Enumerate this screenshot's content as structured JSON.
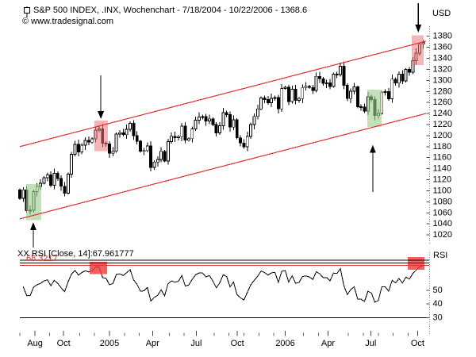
{
  "window": {
    "title": "S&P 500 INDEX, .INX, Wochenchart - 7/18/2004 - 10/22/2006 - 1368.6",
    "copyright": "© www.tradesignal.com"
  },
  "axes": {
    "price_unit": "USD",
    "rsi_label": "RSI",
    "price_ticks": [
      1380,
      1360,
      1340,
      1320,
      1300,
      1280,
      1260,
      1240,
      1220,
      1200,
      1180,
      1160,
      1140,
      1120,
      1100,
      1080,
      1060,
      1040,
      1020
    ],
    "rsi_ticks": [
      50,
      40,
      30
    ],
    "x_labels": [
      {
        "text": "Aug",
        "week": 4.4
      },
      {
        "text": "Oct",
        "week": 12.7
      },
      {
        "text": "2005",
        "week": 26
      },
      {
        "text": "Apr",
        "week": 38.5
      },
      {
        "text": "Jul",
        "week": 51.2
      },
      {
        "text": "Oct",
        "week": 63.1
      },
      {
        "text": "2006",
        "week": 77
      },
      {
        "text": "Apr",
        "week": 89.4
      },
      {
        "text": "Jul",
        "week": 101.8
      },
      {
        "text": "Oct",
        "week": 115.4
      }
    ]
  },
  "indicator": {
    "label": "XX RSI [Close, 14]:67.961777",
    "hidden_red_label": "68.3217"
  },
  "chart_data": {
    "type": "candlestick",
    "title": "S&P 500 INDEX, .INX, Wochenchart - 7/18/2004 - 10/22/2006 - 1368.6",
    "symbol": ".INX",
    "timeframe": "weekly (Wochenchart)",
    "date_range": "7/18/2004 - 10/22/2006",
    "last_price": 1368.6,
    "price_axis": {
      "min": 1013,
      "max": 1392,
      "tick_step": 20
    },
    "weeks": 118,
    "open_first": 1101.4,
    "closes": [
      1086.2,
      1101.7,
      1064.0,
      1064.8,
      1098.3,
      1107.8,
      1113.6,
      1123.9,
      1128.6,
      1110.1,
      1131.5,
      1122.1,
      1108.2,
      1095.7,
      1130.2,
      1166.2,
      1184.2,
      1170.3,
      1182.7,
      1191.2,
      1188.0,
      1194.2,
      1210.1,
      1211.9,
      1186.2,
      1184.5,
      1167.9,
      1171.4,
      1203.0,
      1205.3,
      1201.6,
      1211.4,
      1222.1,
      1200.1,
      1189.7,
      1171.4,
      1172.9,
      1181.2,
      1142.6,
      1152.1,
      1156.9,
      1171.4,
      1154.1,
      1189.3,
      1198.8,
      1196.0,
      1198.1,
      1217.0,
      1191.6,
      1194.4,
      1211.9,
      1227.9,
      1233.7,
      1234.2,
      1226.4,
      1230.4,
      1219.7,
      1205.1,
      1218.0,
      1241.5,
      1237.9,
      1215.3,
      1228.8,
      1195.9,
      1186.6,
      1179.6,
      1198.4,
      1220.1,
      1234.7,
      1248.3,
      1268.3,
      1265.1,
      1259.4,
      1267.3,
      1268.7,
      1248.3,
      1285.5,
      1287.6,
      1261.5,
      1283.7,
      1264.0,
      1267.0,
      1287.2,
      1289.4,
      1287.2,
      1281.6,
      1307.3,
      1303.0,
      1294.9,
      1295.5,
      1289.1,
      1311.3,
      1310.6,
      1325.8,
      1291.2,
      1267.0,
      1280.2,
      1288.2,
      1252.3,
      1251.5,
      1244.5,
      1270.2,
      1265.5,
      1236.2,
      1240.3,
      1278.6,
      1279.4,
      1266.7,
      1302.3,
      1295.1,
      1311.0,
      1298.9,
      1319.7,
      1314.8,
      1335.9,
      1349.6,
      1365.6,
      1368.6
    ],
    "trend_channel": {
      "upper": {
        "week1": 0,
        "price1": 1180,
        "week2": 117.8,
        "price2": 1371
      },
      "lower": {
        "week1": 0,
        "price1": 1049,
        "week2": 117.8,
        "price2": 1240
      }
    },
    "highlights": [
      {
        "pane": "price",
        "color": "green",
        "week_from": 1.8,
        "week_to": 6.2,
        "price_from": 1047,
        "price_to": 1112
      },
      {
        "pane": "price",
        "color": "red",
        "week_from": 21.6,
        "week_to": 25.6,
        "price_from": 1172,
        "price_to": 1227
      },
      {
        "pane": "price",
        "color": "green",
        "week_from": 100.8,
        "week_to": 105.0,
        "price_from": 1216,
        "price_to": 1283
      },
      {
        "pane": "price",
        "color": "red",
        "week_from": 113.7,
        "week_to": 117.2,
        "price_from": 1328,
        "price_to": 1382
      },
      {
        "pane": "rsi",
        "color": "red",
        "week_from": 20.3,
        "week_to": 25.3,
        "rsi_from": 62,
        "rsi_to": 71
      },
      {
        "pane": "rsi",
        "color": "red",
        "week_from": 112.6,
        "week_to": 117.4,
        "rsi_from": 65,
        "rsi_to": 74.5
      }
    ],
    "arrows": [
      {
        "dir": "up",
        "week": 3.9,
        "tip_price": 1043,
        "tail_price": 997
      },
      {
        "dir": "down",
        "week": 23.5,
        "tip_price": 1230,
        "tail_price": 1309
      },
      {
        "dir": "up",
        "week": 102.4,
        "tip_price": 1183,
        "tail_price": 1098
      },
      {
        "dir": "down",
        "week": 115.6,
        "tip_price": 1387,
        "tail_price": 1440
      }
    ],
    "rsi_indicator": {
      "period": 14,
      "source": "Close",
      "last_value": 67.961777,
      "lines": [
        {
          "value": 70,
          "color": "#000000"
        },
        {
          "value": 68.2,
          "color": "#e03030"
        },
        {
          "value": 30,
          "color": "#000000"
        }
      ]
    },
    "colors": {
      "up_candle": "#ffffff",
      "down_candle": "#000000",
      "candle_outline": "#000000",
      "channel": "#e03030",
      "green_box": "#9ccf8e",
      "red_box": "#ee7777",
      "rsi_box": "#f23d3d",
      "rsi_line": "#000000"
    }
  }
}
